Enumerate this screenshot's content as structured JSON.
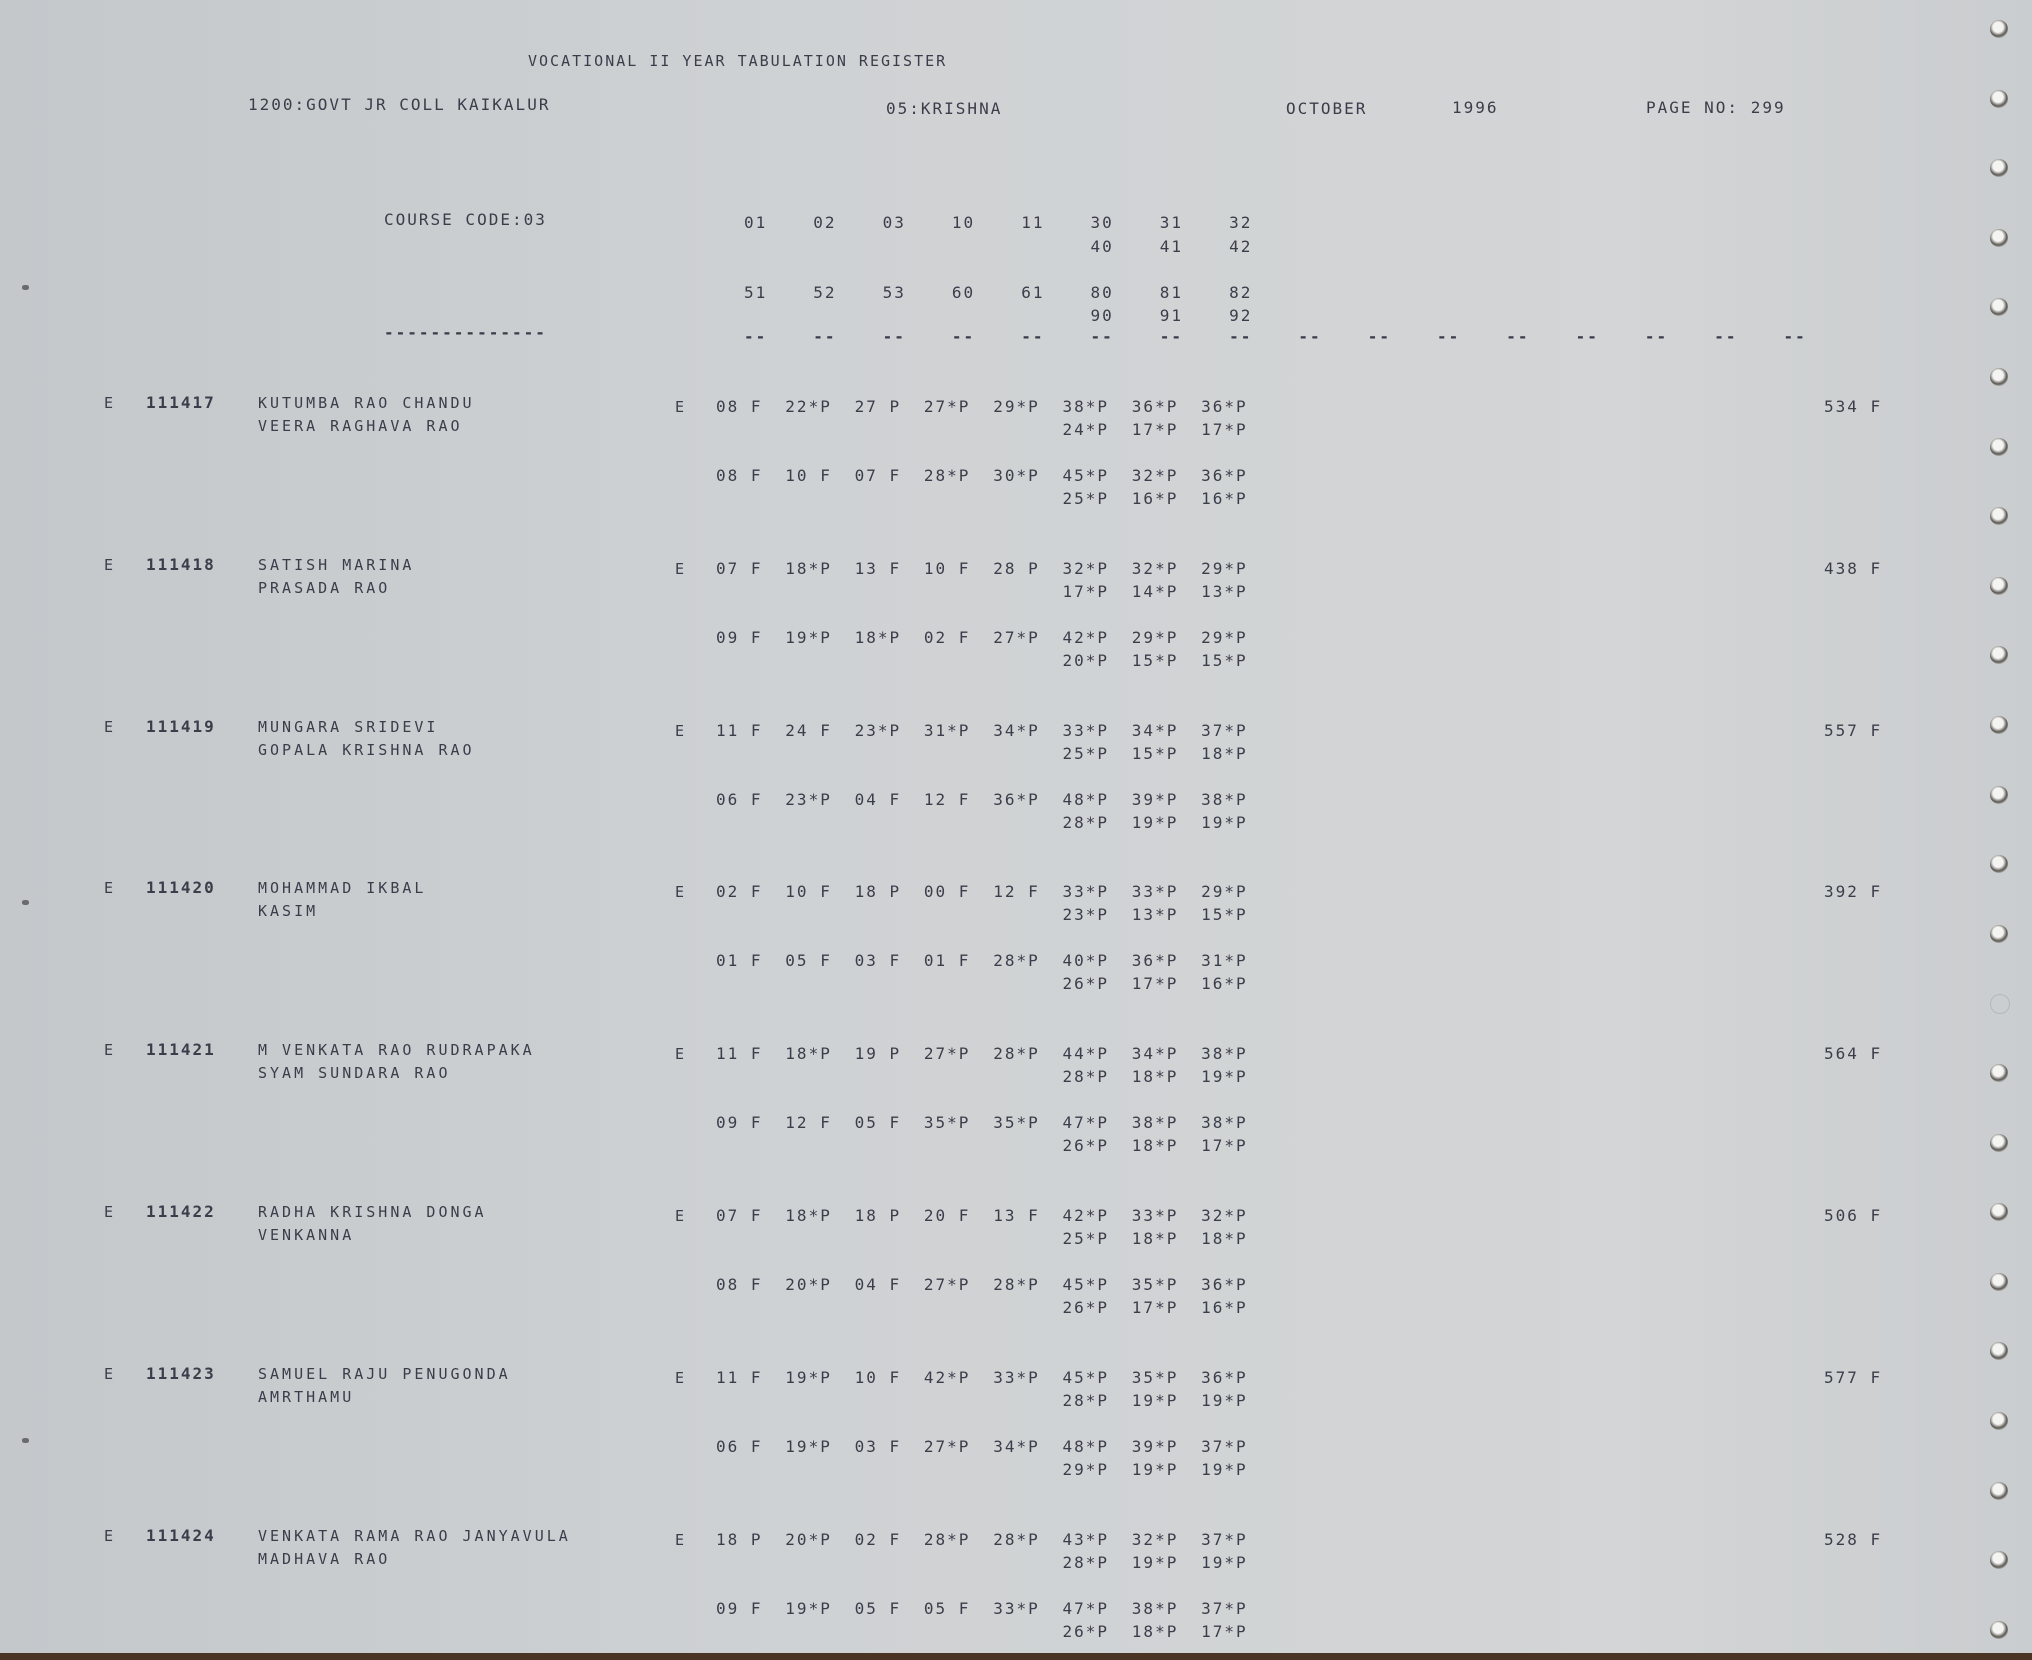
{
  "header": {
    "title": "VOCATIONAL II YEAR TABULATION REGISTER",
    "college": "1200:GOVT JR COLL KAIKALUR",
    "district": "05:KRISHNA",
    "month": "OCTOBER",
    "year": "1996",
    "page": "PAGE NO: 299"
  },
  "course": {
    "label": "COURSE CODE:03",
    "underline": "--------------",
    "codes_row1": [
      "01",
      "02",
      "03",
      "10",
      "11",
      "30",
      "31",
      "32"
    ],
    "codes_row1b": [
      "40",
      "41",
      "42"
    ],
    "codes_row2": [
      "51",
      "52",
      "53",
      "60",
      "61",
      "80",
      "81",
      "82"
    ],
    "codes_row2b": [
      "90",
      "91",
      "92"
    ],
    "dash_columns": [
      "--",
      "--",
      "--",
      "--",
      "--",
      "--",
      "--",
      "--",
      "--",
      "--",
      "--",
      "--",
      "--",
      "--",
      "--",
      "--"
    ]
  },
  "records": [
    {
      "flag": "E",
      "regno": "111417",
      "name": [
        "KUTUMBA RAO CHANDU",
        "VEERA RAGHAVA RAO"
      ],
      "exam_flag": "E",
      "marks": [
        [
          "08 F",
          "22*P",
          "27 P",
          "27*P",
          "29*P",
          "38*P",
          "36*P",
          "36*P"
        ],
        [
          "24*P",
          "17*P",
          "17*P"
        ],
        [
          "08 F",
          "10 F",
          "07 F",
          "28*P",
          "30*P",
          "45*P",
          "32*P",
          "36*P"
        ],
        [
          "25*P",
          "16*P",
          "16*P"
        ]
      ],
      "total": "534 F"
    },
    {
      "flag": "E",
      "regno": "111418",
      "name": [
        "SATISH MARINA",
        "PRASADA RAO"
      ],
      "exam_flag": "E",
      "marks": [
        [
          "07 F",
          "18*P",
          "13 F",
          "10 F",
          "28 P",
          "32*P",
          "32*P",
          "29*P"
        ],
        [
          "17*P",
          "14*P",
          "13*P"
        ],
        [
          "09 F",
          "19*P",
          "18*P",
          "02 F",
          "27*P",
          "42*P",
          "29*P",
          "29*P"
        ],
        [
          "20*P",
          "15*P",
          "15*P"
        ]
      ],
      "total": "438 F"
    },
    {
      "flag": "E",
      "regno": "111419",
      "name": [
        "MUNGARA SRIDEVI",
        "GOPALA KRISHNA RAO"
      ],
      "exam_flag": "E",
      "marks": [
        [
          "11 F",
          "24 F",
          "23*P",
          "31*P",
          "34*P",
          "33*P",
          "34*P",
          "37*P"
        ],
        [
          "25*P",
          "15*P",
          "18*P"
        ],
        [
          "06 F",
          "23*P",
          "04 F",
          "12 F",
          "36*P",
          "48*P",
          "39*P",
          "38*P"
        ],
        [
          "28*P",
          "19*P",
          "19*P"
        ]
      ],
      "total": "557 F"
    },
    {
      "flag": "E",
      "regno": "111420",
      "name": [
        "MOHAMMAD IKBAL",
        "KASIM"
      ],
      "exam_flag": "E",
      "marks": [
        [
          "02 F",
          "10 F",
          "18 P",
          "00 F",
          "12 F",
          "33*P",
          "33*P",
          "29*P"
        ],
        [
          "23*P",
          "13*P",
          "15*P"
        ],
        [
          "01 F",
          "05 F",
          "03 F",
          "01 F",
          "28*P",
          "40*P",
          "36*P",
          "31*P"
        ],
        [
          "26*P",
          "17*P",
          "16*P"
        ]
      ],
      "total": "392 F"
    },
    {
      "flag": "E",
      "regno": "111421",
      "name": [
        "M VENKATA RAO RUDRAPAKA",
        "SYAM SUNDARA RAO"
      ],
      "exam_flag": "E",
      "marks": [
        [
          "11 F",
          "18*P",
          "19 P",
          "27*P",
          "28*P",
          "44*P",
          "34*P",
          "38*P"
        ],
        [
          "28*P",
          "18*P",
          "19*P"
        ],
        [
          "09 F",
          "12 F",
          "05 F",
          "35*P",
          "35*P",
          "47*P",
          "38*P",
          "38*P"
        ],
        [
          "26*P",
          "18*P",
          "17*P"
        ]
      ],
      "total": "564 F"
    },
    {
      "flag": "E",
      "regno": "111422",
      "name": [
        "RADHA KRISHNA DONGA",
        "VENKANNA"
      ],
      "exam_flag": "E",
      "marks": [
        [
          "07 F",
          "18*P",
          "18 P",
          "20 F",
          "13 F",
          "42*P",
          "33*P",
          "32*P"
        ],
        [
          "25*P",
          "18*P",
          "18*P"
        ],
        [
          "08 F",
          "20*P",
          "04 F",
          "27*P",
          "28*P",
          "45*P",
          "35*P",
          "36*P"
        ],
        [
          "26*P",
          "17*P",
          "16*P"
        ]
      ],
      "total": "506 F"
    },
    {
      "flag": "E",
      "regno": "111423",
      "name": [
        "SAMUEL RAJU PENUGONDA",
        "AMRTHAMU"
      ],
      "exam_flag": "E",
      "marks": [
        [
          "11 F",
          "19*P",
          "10 F",
          "42*P",
          "33*P",
          "45*P",
          "35*P",
          "36*P"
        ],
        [
          "28*P",
          "19*P",
          "19*P"
        ],
        [
          "06 F",
          "19*P",
          "03 F",
          "27*P",
          "34*P",
          "48*P",
          "39*P",
          "37*P"
        ],
        [
          "29*P",
          "19*P",
          "19*P"
        ]
      ],
      "total": "577 F"
    },
    {
      "flag": "E",
      "regno": "111424",
      "name": [
        "VENKATA RAMA RAO JANYAVULA",
        "MADHAVA RAO"
      ],
      "exam_flag": "E",
      "marks": [
        [
          "18 P",
          "20*P",
          "02 F",
          "28*P",
          "28*P",
          "43*P",
          "32*P",
          "37*P"
        ],
        [
          "28*P",
          "19*P",
          "19*P"
        ],
        [
          "09 F",
          "19*P",
          "05 F",
          "05 F",
          "33*P",
          "47*P",
          "38*P",
          "37*P"
        ],
        [
          "26*P",
          "18*P",
          "17*P"
        ]
      ],
      "total": "528 F"
    }
  ],
  "colors": {
    "paper": "#cfd2d4",
    "ink": "#3b3d4a",
    "edge": "#4a3424"
  }
}
